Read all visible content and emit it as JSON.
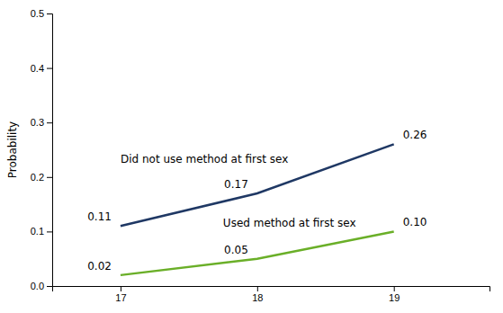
{
  "chart_data": {
    "type": "line",
    "ylabel": "Probability",
    "x": [
      17,
      18,
      19
    ],
    "series": [
      {
        "name": "Did not use method at first sex",
        "color": "#1F3864",
        "values": [
          0.11,
          0.17,
          0.26
        ]
      },
      {
        "name": "Used method at first sex",
        "color": "#6AAF28",
        "values": [
          0.02,
          0.05,
          0.1
        ],
        "value_labels": [
          "0.02",
          "0.05",
          "0.10"
        ]
      }
    ],
    "xlim": [
      16.5,
      19.7
    ],
    "xticks": [
      17,
      18,
      19
    ],
    "ylim": [
      0.0,
      0.5
    ],
    "yticks": [
      {
        "value": 0.0,
        "label": "0.0"
      },
      0.1,
      0.2,
      0.3,
      0.4,
      0.5
    ],
    "grid": false,
    "data_labels": true
  }
}
